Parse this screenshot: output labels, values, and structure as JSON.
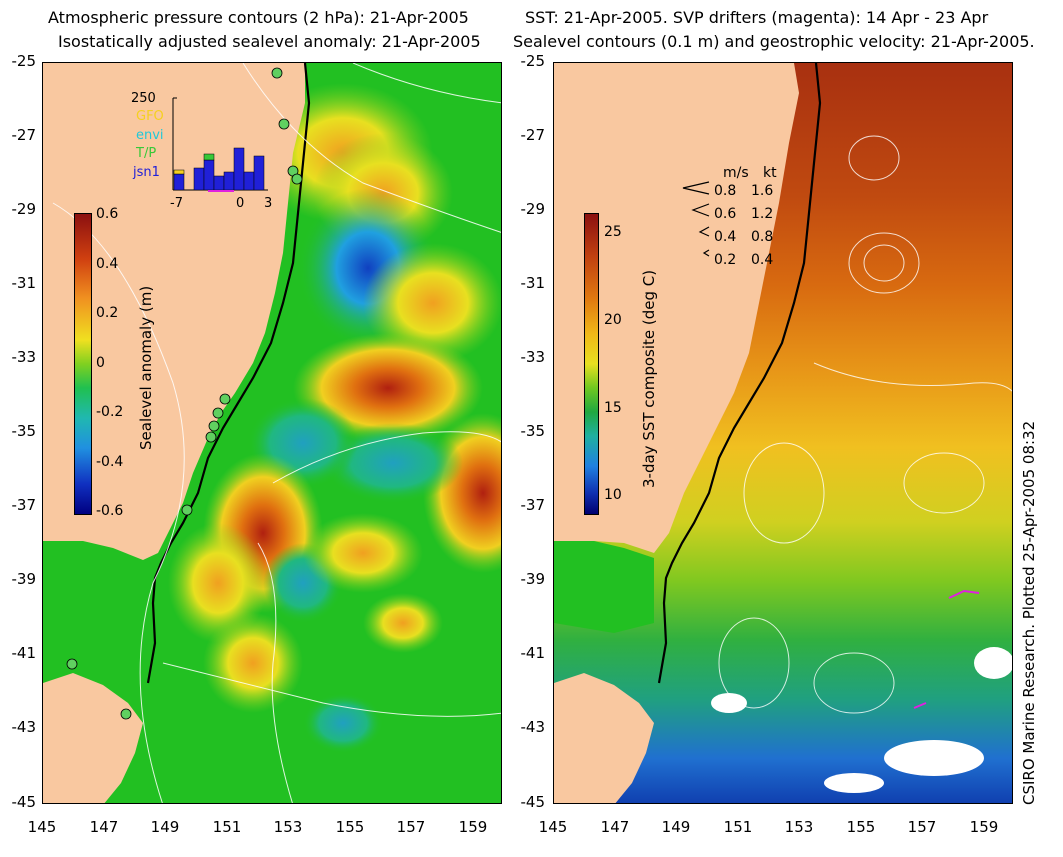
{
  "left_panel": {
    "title_line1": "Atmospheric pressure contours (2 hPa): 21-Apr-2005",
    "title_line2": "Isostatically adjusted sealevel anomaly: 21-Apr-2005",
    "colorbar": {
      "label": "Sealevel anomaly (m)",
      "ticks": [
        "0.6",
        "0.4",
        "0.2",
        "0",
        "-0.2",
        "-0.4",
        "-0.6"
      ],
      "range": [
        -0.6,
        0.6
      ]
    },
    "histogram": {
      "ymax_label": "250",
      "x_ticks": [
        "-7",
        "0",
        "3"
      ],
      "legend": [
        {
          "name": "GFO",
          "color": "#f5d020"
        },
        {
          "name": "envi",
          "color": "#22c8d8"
        },
        {
          "name": "T/P",
          "color": "#38c838"
        },
        {
          "name": "jsn1",
          "color": "#2020d8"
        }
      ]
    }
  },
  "right_panel": {
    "title_line1": "SST: 21-Apr-2005. SVP drifters (magenta): 14 Apr - 23 Apr",
    "title_line2": "Sealevel contours (0.1 m) and geostrophic velocity: 21-Apr-2005.",
    "colorbar": {
      "label": "3-day SST composite (deg C)",
      "ticks": [
        "25",
        "20",
        "15",
        "10"
      ],
      "range": [
        9,
        26
      ]
    },
    "velocity_legend": {
      "header_ms": "m/s",
      "header_kt": "kt",
      "rows": [
        {
          "ms": "0.8",
          "kt": "1.6"
        },
        {
          "ms": "0.6",
          "kt": "1.2"
        },
        {
          "ms": "0.4",
          "kt": "0.8"
        },
        {
          "ms": "0.2",
          "kt": "0.4"
        }
      ]
    }
  },
  "axes": {
    "y_ticks": [
      "-25",
      "-27",
      "-29",
      "-31",
      "-33",
      "-35",
      "-37",
      "-39",
      "-41",
      "-43",
      "-45"
    ],
    "x_ticks": [
      "145",
      "147",
      "149",
      "151",
      "153",
      "155",
      "157",
      "159"
    ]
  },
  "credit": "CSIRO Marine Research. Plotted 25-Apr-2005 08:32",
  "colors": {
    "land": "#f9c8a0",
    "ocean_green": "#22c022",
    "coast": "#000000"
  }
}
